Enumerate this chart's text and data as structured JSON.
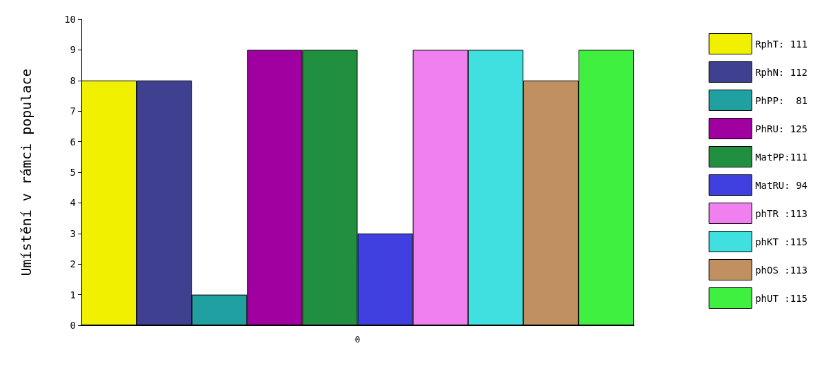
{
  "chart_data": {
    "type": "bar",
    "ylabel": "Umístění v rámci populace",
    "categories": [
      "0"
    ],
    "ylim": [
      0,
      10
    ],
    "yticks": [
      0,
      1,
      2,
      3,
      4,
      5,
      6,
      7,
      8,
      9,
      10
    ],
    "grid": false,
    "legend": "right",
    "series": [
      {
        "name": "RphT: 111",
        "color": "#f0f000",
        "values": [
          8
        ]
      },
      {
        "name": "RphN: 112",
        "color": "#404090",
        "values": [
          8
        ]
      },
      {
        "name": "PhPP:  81",
        "color": "#20a0a0",
        "values": [
          1
        ]
      },
      {
        "name": "PhRU: 125",
        "color": "#a000a0",
        "values": [
          9
        ]
      },
      {
        "name": "MatPP:111",
        "color": "#209040",
        "values": [
          9
        ]
      },
      {
        "name": "MatRU: 94",
        "color": "#4040e0",
        "values": [
          3
        ]
      },
      {
        "name": "phTR :113",
        "color": "#f080f0",
        "values": [
          9
        ]
      },
      {
        "name": "phKT :115",
        "color": "#40e0e0",
        "values": [
          9
        ]
      },
      {
        "name": "phOS :113",
        "color": "#c09060",
        "values": [
          8
        ]
      },
      {
        "name": "phUT :115",
        "color": "#40f040",
        "values": [
          9
        ]
      }
    ]
  }
}
